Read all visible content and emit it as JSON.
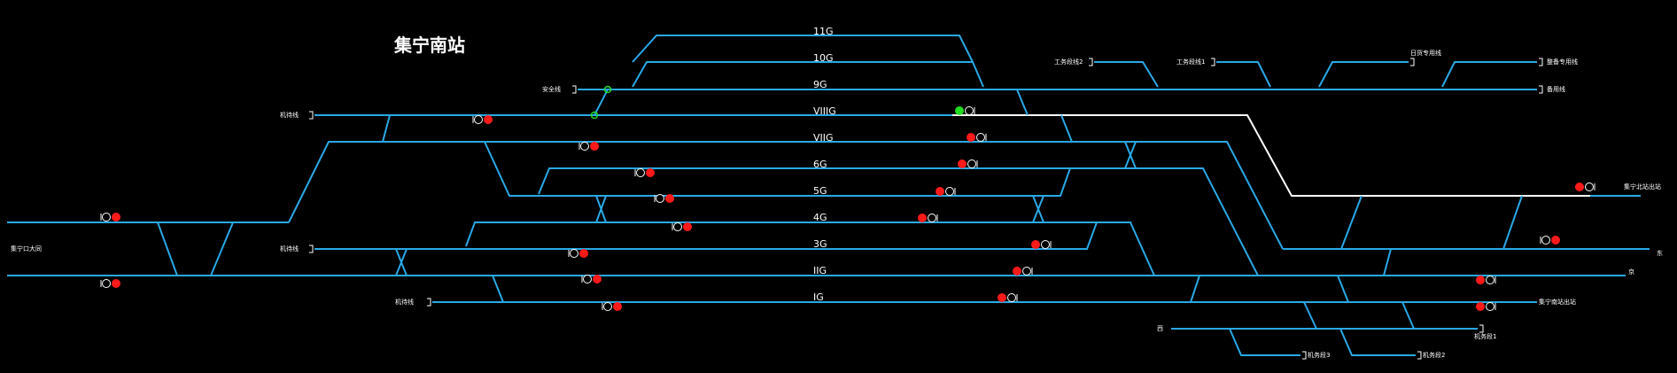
{
  "title": "集宁南站",
  "colors": {
    "background": "#000000",
    "track": "#29a9e6",
    "route_locked": "#ffffff",
    "signal_red": "#ff1a1a",
    "signal_green": "#22dd22",
    "switch_green": "#22dd22"
  },
  "tracks": {
    "t11G": "11G",
    "t10G": "10G",
    "t9G": "9G",
    "tVIIIG": "VIIIG",
    "tVIIG": "VIIG",
    "t6G": "6G",
    "t5G": "5G",
    "t4G": "4G",
    "t3G": "3G",
    "tIIG": "IIG",
    "tIG": "IG"
  },
  "labels": {
    "safety_line": "安全线",
    "standby_1": "机待线",
    "standby_2": "机待线",
    "standby_3": "机待线",
    "depot_left": "集宁口大同",
    "work_2": "工务段线2",
    "work_1": "工务段线1",
    "special_line_a": "日货专用线",
    "special_line_b": "整备专用线",
    "line_right_9": "备用线",
    "to_north": "集宁北站出站",
    "to_east_1": "东",
    "to_east_2": "京",
    "to_south": "集宁南站出站",
    "loco_left": "西",
    "depot_3": "机务段3",
    "depot_2": "机务段2",
    "depot_1": "机务段1"
  },
  "signals": [
    {
      "id": "s1",
      "state": "red"
    },
    {
      "id": "s2",
      "state": "red"
    },
    {
      "id": "s3",
      "state": "red"
    },
    {
      "id": "s4",
      "state": "red"
    },
    {
      "id": "s5",
      "state": "red"
    },
    {
      "id": "s6",
      "state": "red"
    },
    {
      "id": "s7",
      "state": "red"
    },
    {
      "id": "s8",
      "state": "red"
    },
    {
      "id": "s9",
      "state": "red"
    },
    {
      "id": "s10",
      "state": "red"
    },
    {
      "id": "s11",
      "state": "red"
    },
    {
      "id": "s12",
      "state": "red"
    },
    {
      "id": "s13",
      "state": "red"
    },
    {
      "id": "s14",
      "state": "red"
    },
    {
      "id": "s15",
      "state": "red"
    },
    {
      "id": "s16",
      "state": "red"
    },
    {
      "id": "s17",
      "state": "red"
    },
    {
      "id": "s18",
      "state": "red"
    },
    {
      "id": "s19",
      "state": "red"
    },
    {
      "id": "s20",
      "state": "red"
    },
    {
      "id": "s21",
      "state": "green"
    },
    {
      "id": "s22",
      "state": "red"
    },
    {
      "id": "s23",
      "state": "red"
    }
  ]
}
